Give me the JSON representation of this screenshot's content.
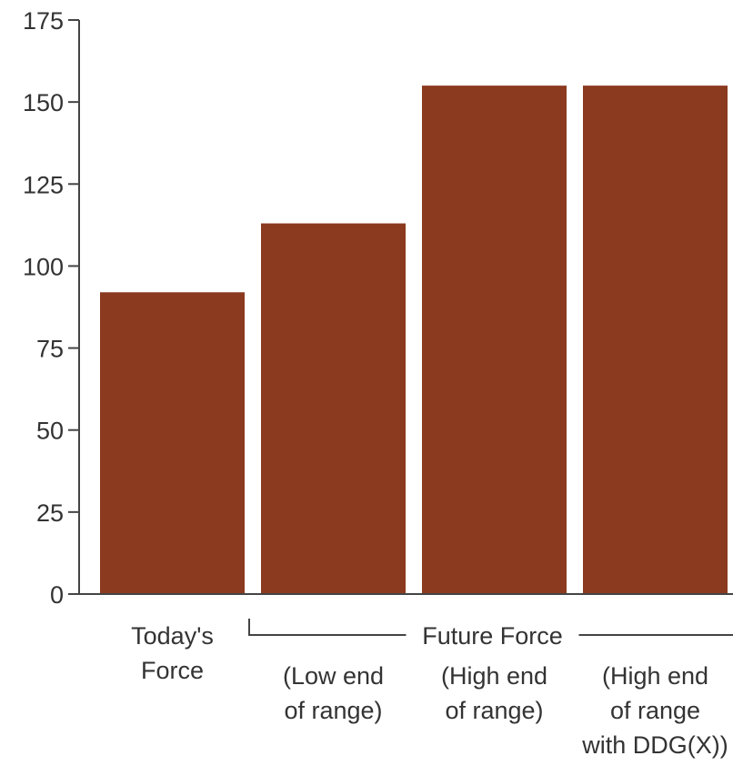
{
  "chart_data": {
    "type": "bar",
    "title": "",
    "xlabel": "",
    "ylabel": "",
    "ylim": [
      0,
      175
    ],
    "yticks": [
      0,
      25,
      50,
      75,
      100,
      125,
      150,
      175
    ],
    "grid": false,
    "legend": "none",
    "categories": [
      [
        "Today's",
        "Force"
      ],
      [
        "(Low end",
        "of range)"
      ],
      [
        "(High end",
        "of range)"
      ],
      [
        "(High end",
        "of range",
        "with DDG(X))"
      ]
    ],
    "values": [
      92,
      113,
      155,
      155
    ],
    "group_label": "Future Force",
    "group_categories": [
      1,
      2,
      3
    ]
  },
  "colors": {
    "bar": "#8B3A1F",
    "axis": "#444444",
    "text": "#333333"
  }
}
